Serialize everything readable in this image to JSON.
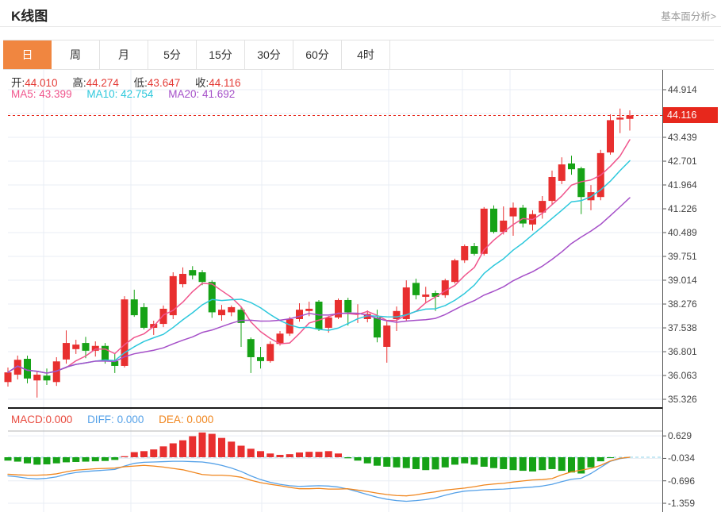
{
  "header": {
    "title": "K线图",
    "link": "基本面分析>"
  },
  "tabs": {
    "items": [
      {
        "label": "日",
        "active": true
      },
      {
        "label": "周",
        "active": false
      },
      {
        "label": "月",
        "active": false
      },
      {
        "label": "5分",
        "active": false
      },
      {
        "label": "15分",
        "active": false
      },
      {
        "label": "30分",
        "active": false
      },
      {
        "label": "60分",
        "active": false
      },
      {
        "label": "4时",
        "active": false
      }
    ]
  },
  "legend": {
    "ohlc": [
      {
        "label": "开:",
        "value": "44.010"
      },
      {
        "label": "高:",
        "value": "44.274"
      },
      {
        "label": "低:",
        "value": "43.647"
      },
      {
        "label": "收:",
        "value": "44.116"
      }
    ],
    "ma": [
      {
        "label": "MA5:",
        "value": "43.399"
      },
      {
        "label": "MA10:",
        "value": "42.754"
      },
      {
        "label": "MA20:",
        "value": "41.692"
      }
    ],
    "macd": [
      {
        "label": "MACD:",
        "value": "0.000"
      },
      {
        "label": "DIFF:",
        "value": "0.000"
      },
      {
        "label": "DEA:",
        "value": "0.000"
      }
    ]
  },
  "colors": {
    "up": "#e82f2f",
    "down": "#16a216",
    "ma5": "#f0548c",
    "ma10": "#2cc8dc",
    "ma20": "#a54fc8",
    "diff": "#55a1e8",
    "dea": "#f0861e",
    "ohlc_value": "#e43b36",
    "macd_label": "#e8483c",
    "price_line": "#e7281c",
    "tab_active_bg": "#f08640",
    "grid": "#e9eef4",
    "zero_dash": "#8fd3e8",
    "axis_line": "#555555",
    "separator_dark": "#1a1a1a",
    "separator_gray": "#b5b5b5"
  },
  "chart_data": {
    "type": "candlestick+macd",
    "title": "K线图",
    "legend_position": "top-left",
    "grid": true,
    "current_price": "44.116",
    "price_axis_ticks": [
      "44.914",
      "43.439",
      "42.701",
      "41.964",
      "41.226",
      "40.489",
      "39.751",
      "39.014",
      "38.276",
      "37.538",
      "36.801",
      "36.063",
      "35.326"
    ],
    "price_axis_range": [
      35.326,
      44.914
    ],
    "vgrid_x": [
      55,
      165,
      330,
      490,
      583,
      643
    ],
    "ma_periods": [
      5,
      10,
      20
    ],
    "candles": [
      [
        35.86,
        36.31,
        35.72,
        36.16
      ],
      [
        36.09,
        36.68,
        35.94,
        36.55
      ],
      [
        36.58,
        36.68,
        35.82,
        35.97
      ],
      [
        35.91,
        36.19,
        35.38,
        36.09
      ],
      [
        36.06,
        36.28,
        35.77,
        35.91
      ],
      [
        35.86,
        36.63,
        35.74,
        36.5
      ],
      [
        36.56,
        37.46,
        36.43,
        37.07
      ],
      [
        36.88,
        37.17,
        36.73,
        37.02
      ],
      [
        37.07,
        37.26,
        36.6,
        36.83
      ],
      [
        36.83,
        37.12,
        36.65,
        36.98
      ],
      [
        36.98,
        37.07,
        36.43,
        36.51
      ],
      [
        36.51,
        36.73,
        36.14,
        36.36
      ],
      [
        36.36,
        38.52,
        36.31,
        38.42
      ],
      [
        38.42,
        38.72,
        37.88,
        37.93
      ],
      [
        38.18,
        38.3,
        37.49,
        37.54
      ],
      [
        37.54,
        37.76,
        37.32,
        37.66
      ],
      [
        37.66,
        38.23,
        37.56,
        38.13
      ],
      [
        37.93,
        39.26,
        37.81,
        39.14
      ],
      [
        38.89,
        39.41,
        38.79,
        39.21
      ],
      [
        39.33,
        39.45,
        39.04,
        39.16
      ],
      [
        39.26,
        39.33,
        38.86,
        38.96
      ],
      [
        38.96,
        39.01,
        37.85,
        38.02
      ],
      [
        37.93,
        38.25,
        37.76,
        38.1
      ],
      [
        38.02,
        38.23,
        37.9,
        38.18
      ],
      [
        38.1,
        38.2,
        36.95,
        37.69
      ],
      [
        37.19,
        37.24,
        36.14,
        36.63
      ],
      [
        36.63,
        36.95,
        36.28,
        36.51
      ],
      [
        36.51,
        37.12,
        36.46,
        37.04
      ],
      [
        37.04,
        37.44,
        36.99,
        37.36
      ],
      [
        37.36,
        37.88,
        37.29,
        37.81
      ],
      [
        37.81,
        38.3,
        37.73,
        38.1
      ],
      [
        38.06,
        38.35,
        37.9,
        38.13
      ],
      [
        38.35,
        38.4,
        37.44,
        37.49
      ],
      [
        37.54,
        37.91,
        37.39,
        37.86
      ],
      [
        37.86,
        38.45,
        37.81,
        38.4
      ],
      [
        38.4,
        38.47,
        37.61,
        38.02
      ],
      [
        37.97,
        38.27,
        37.69,
        37.99
      ],
      [
        37.81,
        38.08,
        37.71,
        37.97
      ],
      [
        37.86,
        38.1,
        37.09,
        37.24
      ],
      [
        36.95,
        37.74,
        36.46,
        37.61
      ],
      [
        37.81,
        38.2,
        37.44,
        38.06
      ],
      [
        37.81,
        39.01,
        37.76,
        38.79
      ],
      [
        38.93,
        39.06,
        38.42,
        38.55
      ],
      [
        38.5,
        38.81,
        38.3,
        38.57
      ],
      [
        38.62,
        38.69,
        38.06,
        38.5
      ],
      [
        38.55,
        39.06,
        38.47,
        39.01
      ],
      [
        38.96,
        39.68,
        38.91,
        39.63
      ],
      [
        39.63,
        40.12,
        39.55,
        40.07
      ],
      [
        40.07,
        40.17,
        39.78,
        39.83
      ],
      [
        39.83,
        41.28,
        39.78,
        41.23
      ],
      [
        41.23,
        41.33,
        40.46,
        40.51
      ],
      [
        40.51,
        41.3,
        40.43,
        40.86
      ],
      [
        40.99,
        41.42,
        40.39,
        41.26
      ],
      [
        41.26,
        41.35,
        40.65,
        40.77
      ],
      [
        40.74,
        41.18,
        40.55,
        41.06
      ],
      [
        41.11,
        41.62,
        40.92,
        41.47
      ],
      [
        41.47,
        42.41,
        41.35,
        42.21
      ],
      [
        42.09,
        42.82,
        41.99,
        42.6
      ],
      [
        42.63,
        42.87,
        42.28,
        42.45
      ],
      [
        42.48,
        42.53,
        41.06,
        41.59
      ],
      [
        41.49,
        41.96,
        41.18,
        41.74
      ],
      [
        41.59,
        43.05,
        41.49,
        42.95
      ],
      [
        42.97,
        44.15,
        42.9,
        43.97
      ],
      [
        43.99,
        44.33,
        43.57,
        44.05
      ],
      [
        44.01,
        44.274,
        43.647,
        44.116
      ]
    ],
    "macd": {
      "axis_ticks": [
        "0.629",
        "-0.034",
        "-0.696",
        "-1.359"
      ],
      "hist": [
        -0.1,
        -0.13,
        -0.18,
        -0.22,
        -0.21,
        -0.18,
        -0.15,
        -0.14,
        -0.13,
        -0.12,
        -0.11,
        -0.08,
        0.03,
        0.15,
        0.18,
        0.23,
        0.32,
        0.41,
        0.5,
        0.62,
        0.73,
        0.69,
        0.57,
        0.46,
        0.34,
        0.25,
        0.18,
        0.11,
        0.07,
        0.09,
        0.14,
        0.16,
        0.16,
        0.18,
        0.11,
        -0.03,
        -0.1,
        -0.18,
        -0.25,
        -0.28,
        -0.3,
        -0.32,
        -0.35,
        -0.38,
        -0.36,
        -0.3,
        -0.22,
        -0.18,
        -0.22,
        -0.28,
        -0.32,
        -0.35,
        -0.38,
        -0.4,
        -0.42,
        -0.38,
        -0.35,
        -0.4,
        -0.45,
        -0.48,
        -0.3,
        -0.12,
        -0.02,
        -0.01,
        0.0
      ],
      "diff": [
        -0.55,
        -0.58,
        -0.62,
        -0.64,
        -0.62,
        -0.58,
        -0.5,
        -0.45,
        -0.42,
        -0.4,
        -0.38,
        -0.36,
        -0.26,
        -0.18,
        -0.15,
        -0.14,
        -0.13,
        -0.12,
        -0.12,
        -0.13,
        -0.14,
        -0.18,
        -0.24,
        -0.32,
        -0.42,
        -0.55,
        -0.66,
        -0.74,
        -0.8,
        -0.84,
        -0.86,
        -0.85,
        -0.84,
        -0.85,
        -0.88,
        -0.94,
        -1.02,
        -1.1,
        -1.18,
        -1.24,
        -1.28,
        -1.3,
        -1.28,
        -1.25,
        -1.2,
        -1.12,
        -1.05,
        -1.0,
        -0.98,
        -0.96,
        -0.95,
        -0.94,
        -0.92,
        -0.9,
        -0.88,
        -0.85,
        -0.8,
        -0.72,
        -0.65,
        -0.62,
        -0.48,
        -0.3,
        -0.12,
        -0.04,
        0.0
      ],
      "dea": [
        -0.5,
        -0.52,
        -0.53,
        -0.53,
        -0.52,
        -0.49,
        -0.43,
        -0.38,
        -0.36,
        -0.34,
        -0.33,
        -0.32,
        -0.28,
        -0.26,
        -0.24,
        -0.26,
        -0.29,
        -0.33,
        -0.37,
        -0.44,
        -0.51,
        -0.53,
        -0.53,
        -0.55,
        -0.59,
        -0.68,
        -0.75,
        -0.8,
        -0.84,
        -0.89,
        -0.93,
        -0.93,
        -0.92,
        -0.94,
        -0.94,
        -0.93,
        -0.97,
        -1.01,
        -1.06,
        -1.1,
        -1.13,
        -1.14,
        -1.11,
        -1.06,
        -1.02,
        -0.97,
        -0.94,
        -0.91,
        -0.87,
        -0.82,
        -0.79,
        -0.77,
        -0.73,
        -0.7,
        -0.67,
        -0.66,
        -0.63,
        -0.52,
        -0.43,
        -0.38,
        -0.33,
        -0.24,
        -0.11,
        -0.03,
        0.0
      ]
    }
  }
}
